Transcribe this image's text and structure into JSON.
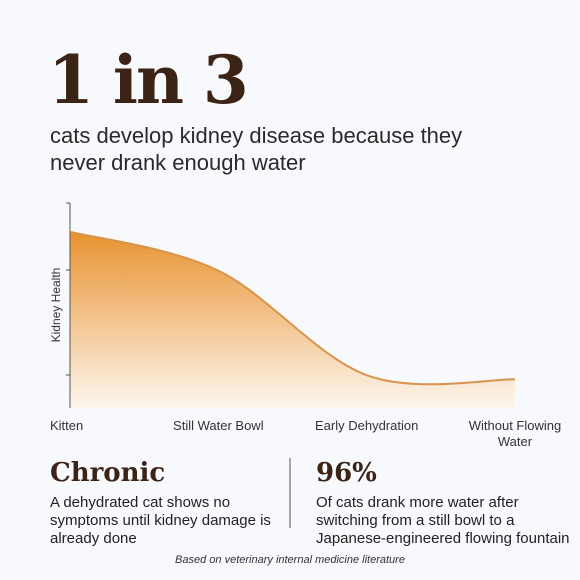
{
  "chart_data": {
    "type": "area",
    "title": "1 in 3",
    "subtitle": "cats develop kidney disease because they never drank enough water",
    "y_label": "Kidney Health",
    "categories": [
      "Kitten",
      "Still Water Bowl",
      "Early Dehydration",
      "Without Flowing Water"
    ],
    "values": [
      86,
      67,
      16,
      14
    ],
    "ylim": [
      0,
      100
    ],
    "color": "#d8944c"
  },
  "stats": [
    {
      "headline": "Chronic",
      "text": "A dehydrated cat shows no symptoms until kidney damage is already done"
    },
    {
      "headline": "96%",
      "text": "Of cats drank more water after switching from a still bowl to a Japanese-engineered flowing fountain"
    }
  ],
  "footnote": "Based on veterinary internal medicine literature"
}
